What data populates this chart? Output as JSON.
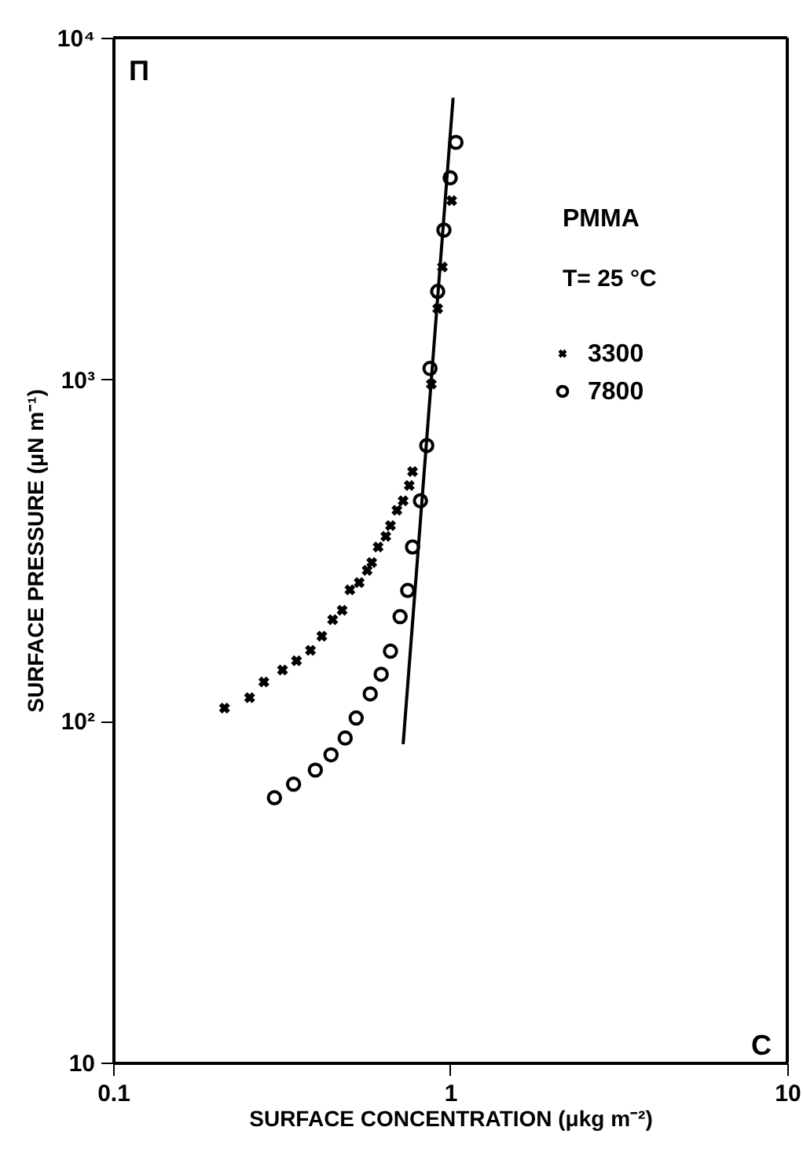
{
  "chart_data": {
    "type": "scatter",
    "xlabel": "SURFACE  CONCENTRATION (μkg m⁻²)",
    "ylabel": "SURFACE  PRESSURE  (μN m⁻¹)",
    "legend_title": "PMMA\nT= 25 °C",
    "annotations": [
      "Π",
      "C"
    ],
    "log": "xy",
    "xlim": [
      0.1,
      10
    ],
    "ylim": [
      10,
      10000
    ],
    "xticks": [
      {
        "value": 0.1,
        "label": "0.1"
      },
      1,
      10
    ],
    "yticks": [
      10,
      {
        "value": 100,
        "label": "10²"
      },
      {
        "value": 1000,
        "label": "10³"
      },
      {
        "value": 10000,
        "label": "10⁴"
      }
    ],
    "grid": false,
    "legend": "top right",
    "series": [
      {
        "name": "3300",
        "color": "#000000",
        "marker": "cross",
        "x": [
          0.214,
          0.254,
          0.28,
          0.318,
          0.35,
          0.385,
          0.416,
          0.448,
          0.478,
          0.504,
          0.537,
          0.567,
          0.585,
          0.611,
          0.644,
          0.665,
          0.695,
          0.725,
          0.756,
          0.773,
          0.879,
          0.918,
          0.948,
          1.01
        ],
        "values": [
          109,
          117,
          130,
          141,
          150,
          161,
          177,
          198,
          211,
          242,
          254,
          276,
          291,
          323,
          347,
          373,
          414,
          441,
          489,
          537,
          968,
          1611,
          2133,
          3334
        ]
      },
      {
        "name": "7800",
        "color": "#000000",
        "marker": "circle",
        "x": [
          0.301,
          0.343,
          0.398,
          0.443,
          0.488,
          0.526,
          0.579,
          0.624,
          0.665,
          0.71,
          0.748,
          0.773,
          0.816,
          0.852,
          0.871,
          0.918,
          0.958,
          1.0,
          1.04
        ],
        "values": [
          59.6,
          65.3,
          71.8,
          79.6,
          89.1,
          102,
          120,
          137,
          160,
          202,
          241,
          323,
          441,
          640,
          1076,
          1809,
          2735,
          3890,
          4940
        ]
      },
      {
        "type": "line",
        "color": "#000000",
        "marker": "none",
        "x": [
          0.725,
          1.02
        ],
        "values": [
          85.5,
          6670
        ]
      }
    ]
  }
}
